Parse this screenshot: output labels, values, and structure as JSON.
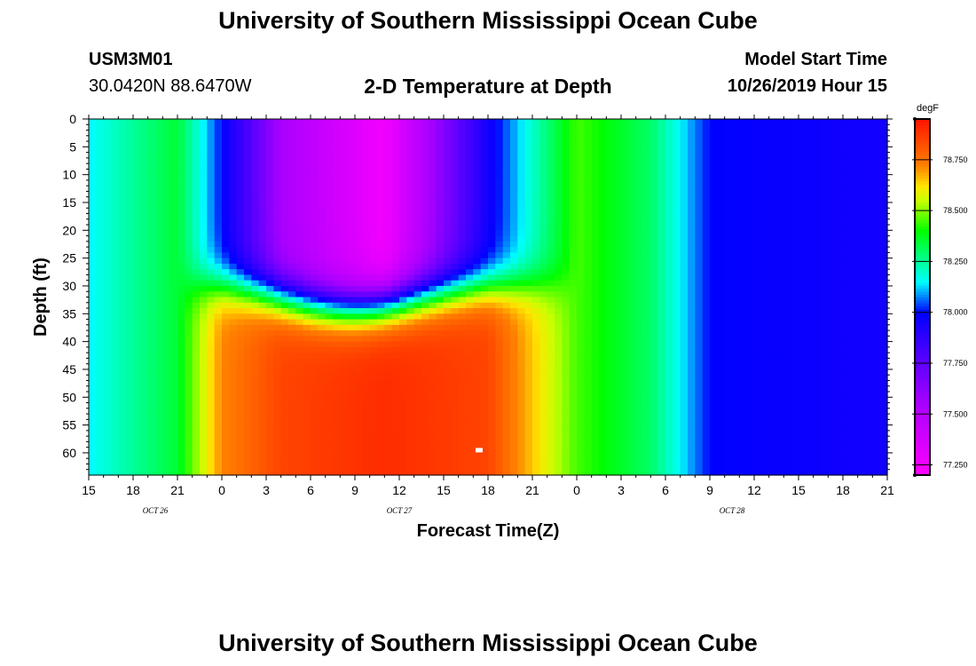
{
  "header": {
    "title": "University of Southern Mississippi Ocean Cube",
    "station_id": "USM3M01",
    "coords": "30.0420N 88.6470W",
    "subtitle": "2-D Temperature at Depth",
    "start_label": "Model Start Time",
    "start_value": "10/26/2019 Hour 15"
  },
  "footer": {
    "title": "University of Southern Mississippi Ocean Cube"
  },
  "chart_data": {
    "type": "heatmap",
    "title": "2-D Temperature at Depth",
    "xlabel": "Forecast Time(Z)",
    "ylabel": "Depth (ft)",
    "x_hours_from_start": [
      0,
      54
    ],
    "x_tick_labels": [
      "15",
      "18",
      "21",
      "0",
      "3",
      "6",
      "9",
      "12",
      "15",
      "18",
      "21",
      "0",
      "3",
      "6",
      "9",
      "12",
      "15",
      "18",
      "21"
    ],
    "date_labels": [
      {
        "text": "OCT  26",
        "x_hours": 4.5
      },
      {
        "text": "OCT  27",
        "x_hours": 21
      },
      {
        "text": "OCT  28",
        "x_hours": 43.5
      }
    ],
    "y_tick_labels": [
      "0",
      "5",
      "10",
      "15",
      "20",
      "25",
      "30",
      "35",
      "40",
      "45",
      "50",
      "55",
      "60"
    ],
    "ylim": [
      64,
      0
    ],
    "colorbar": {
      "unit": "degF",
      "range": [
        77.2,
        78.95
      ],
      "tick_labels": [
        "78.750",
        "78.500",
        "78.250",
        "78.000",
        "77.750",
        "77.500",
        "77.250"
      ],
      "tick_values": [
        78.75,
        78.5,
        78.25,
        78.0,
        77.75,
        77.5,
        77.25
      ]
    },
    "surface_bottom": [
      77.25,
      77.45,
      77.8,
      78.0,
      78.1,
      78.25,
      78.6,
      78.9
    ],
    "depth_fields": [
      {
        "name": "surface_layer",
        "hours": [
          0,
          6,
          9,
          13,
          20,
          27,
          33,
          38,
          42,
          54
        ],
        "temps": [
          78.15,
          78.35,
          78.0,
          77.55,
          77.25,
          77.95,
          78.45,
          78.3,
          78.0,
          77.95
        ]
      },
      {
        "name": "bottom_layer",
        "hours": [
          0,
          6,
          9,
          13,
          20,
          27,
          33,
          38,
          42,
          54
        ],
        "temps": [
          78.15,
          78.35,
          78.72,
          78.85,
          78.9,
          78.85,
          78.45,
          78.3,
          78.0,
          77.95
        ]
      }
    ]
  }
}
